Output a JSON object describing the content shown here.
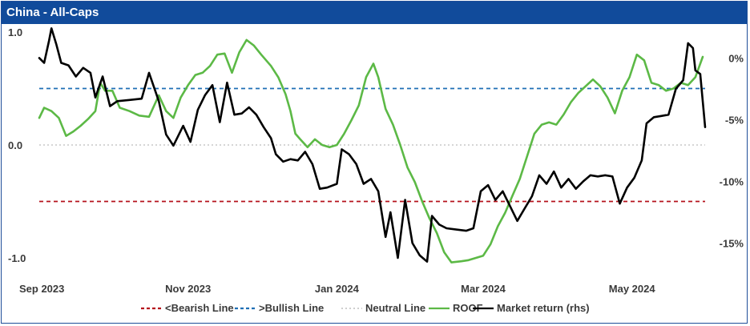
{
  "title": "China - All-Caps",
  "chart_data": {
    "type": "line",
    "title": "China - All-Caps",
    "x_tick_labels": [
      "Sep 2023",
      "Nov 2023",
      "Jan 2024",
      "Mar 2024",
      "May 2024"
    ],
    "x_ticks_dates": [
      "2023-09-01",
      "2023-11-01",
      "2024-01-01",
      "2024-03-01",
      "2024-05-01"
    ],
    "x_range": [
      "2023-09-01",
      "2024-05-31"
    ],
    "y_left": {
      "ticks": [
        "1.0",
        "0.0",
        "-1.0"
      ],
      "tick_values": [
        1.0,
        0.0,
        -1.0
      ],
      "range": [
        -1.0,
        1.0
      ]
    },
    "y_right": {
      "ticks": [
        "0%",
        "-5%",
        "-10%",
        "-15%"
      ],
      "tick_values": [
        0,
        -5,
        -10,
        -15
      ],
      "range": [
        -16.2,
        2.1
      ],
      "unit": "%"
    },
    "grid": false,
    "legend_position": "bottom",
    "reference_lines": [
      {
        "name": "<Bearish Line",
        "value": -0.5,
        "color": "#b5121b",
        "style": "dashed"
      },
      {
        "name": ">Bullish Line",
        "value": 0.5,
        "color": "#1f6fb5",
        "style": "dashed"
      },
      {
        "name": "Neutral Line",
        "value": 0.0,
        "color": "#bdbdbd",
        "style": "dotted"
      }
    ],
    "series": [
      {
        "name": "ROOF",
        "axis": "left",
        "color": "#5cb946",
        "points": [
          [
            "2023-09-01",
            0.24
          ],
          [
            "2023-09-03",
            0.33
          ],
          [
            "2023-09-06",
            0.3
          ],
          [
            "2023-09-09",
            0.24
          ],
          [
            "2023-09-12",
            0.08
          ],
          [
            "2023-09-15",
            0.12
          ],
          [
            "2023-09-18",
            0.17
          ],
          [
            "2023-09-21",
            0.23
          ],
          [
            "2023-09-24",
            0.3
          ],
          [
            "2023-09-26",
            0.55
          ],
          [
            "2023-09-28",
            0.48
          ],
          [
            "2023-10-01",
            0.48
          ],
          [
            "2023-10-04",
            0.33
          ],
          [
            "2023-10-08",
            0.3
          ],
          [
            "2023-10-12",
            0.26
          ],
          [
            "2023-10-16",
            0.25
          ],
          [
            "2023-10-20",
            0.44
          ],
          [
            "2023-10-23",
            0.3
          ],
          [
            "2023-10-26",
            0.24
          ],
          [
            "2023-10-29",
            0.42
          ],
          [
            "2023-11-01",
            0.53
          ],
          [
            "2023-11-04",
            0.62
          ],
          [
            "2023-11-07",
            0.64
          ],
          [
            "2023-11-10",
            0.7
          ],
          [
            "2023-11-13",
            0.8
          ],
          [
            "2023-11-16",
            0.81
          ],
          [
            "2023-11-19",
            0.64
          ],
          [
            "2023-11-22",
            0.82
          ],
          [
            "2023-11-25",
            0.93
          ],
          [
            "2023-11-28",
            0.88
          ],
          [
            "2023-12-01",
            0.8
          ],
          [
            "2023-12-05",
            0.7
          ],
          [
            "2023-12-08",
            0.6
          ],
          [
            "2023-12-11",
            0.45
          ],
          [
            "2023-12-13",
            0.3
          ],
          [
            "2023-12-15",
            0.1
          ],
          [
            "2023-12-17",
            0.05
          ],
          [
            "2023-12-20",
            -0.02
          ],
          [
            "2023-12-23",
            0.05
          ],
          [
            "2023-12-26",
            0.0
          ],
          [
            "2023-12-29",
            -0.02
          ],
          [
            "2024-01-01",
            0.0
          ],
          [
            "2024-01-04",
            0.1
          ],
          [
            "2024-01-07",
            0.22
          ],
          [
            "2024-01-10",
            0.35
          ],
          [
            "2024-01-13",
            0.6
          ],
          [
            "2024-01-16",
            0.72
          ],
          [
            "2024-01-18",
            0.6
          ],
          [
            "2024-01-21",
            0.32
          ],
          [
            "2024-01-24",
            0.18
          ],
          [
            "2024-01-27",
            0.0
          ],
          [
            "2024-01-30",
            -0.2
          ],
          [
            "2024-02-02",
            -0.33
          ],
          [
            "2024-02-05",
            -0.5
          ],
          [
            "2024-02-08",
            -0.65
          ],
          [
            "2024-02-11",
            -0.78
          ],
          [
            "2024-02-14",
            -0.95
          ],
          [
            "2024-02-17",
            -1.04
          ],
          [
            "2024-02-21",
            -1.03
          ],
          [
            "2024-02-24",
            -1.02
          ],
          [
            "2024-02-27",
            -1.0
          ],
          [
            "2024-03-01",
            -0.98
          ],
          [
            "2024-03-04",
            -0.88
          ],
          [
            "2024-03-07",
            -0.72
          ],
          [
            "2024-03-10",
            -0.6
          ],
          [
            "2024-03-13",
            -0.45
          ],
          [
            "2024-03-16",
            -0.3
          ],
          [
            "2024-03-19",
            -0.1
          ],
          [
            "2024-03-22",
            0.1
          ],
          [
            "2024-03-25",
            0.18
          ],
          [
            "2024-03-28",
            0.2
          ],
          [
            "2024-03-31",
            0.18
          ],
          [
            "2024-04-03",
            0.27
          ],
          [
            "2024-04-06",
            0.38
          ],
          [
            "2024-04-09",
            0.46
          ],
          [
            "2024-04-12",
            0.52
          ],
          [
            "2024-04-15",
            0.58
          ],
          [
            "2024-04-18",
            0.52
          ],
          [
            "2024-04-21",
            0.42
          ],
          [
            "2024-04-24",
            0.28
          ],
          [
            "2024-04-27",
            0.48
          ],
          [
            "2024-04-30",
            0.6
          ],
          [
            "2024-05-03",
            0.8
          ],
          [
            "2024-05-06",
            0.75
          ],
          [
            "2024-05-09",
            0.55
          ],
          [
            "2024-05-12",
            0.53
          ],
          [
            "2024-05-15",
            0.48
          ],
          [
            "2024-05-18",
            0.5
          ],
          [
            "2024-05-21",
            0.55
          ],
          [
            "2024-05-24",
            0.53
          ],
          [
            "2024-05-27",
            0.6
          ],
          [
            "2024-05-30",
            0.78
          ]
        ]
      },
      {
        "name": "Market return (rhs)",
        "axis": "right",
        "color": "#000000",
        "points": [
          [
            "2023-09-01",
            0.0
          ],
          [
            "2023-09-03",
            -0.4
          ],
          [
            "2023-09-05",
            1.4
          ],
          [
            "2023-09-06",
            2.4
          ],
          [
            "2023-09-08",
            1.1
          ],
          [
            "2023-09-10",
            -0.4
          ],
          [
            "2023-09-13",
            -0.6
          ],
          [
            "2023-09-16",
            -1.5
          ],
          [
            "2023-09-19",
            -0.8
          ],
          [
            "2023-09-22",
            -1.2
          ],
          [
            "2023-09-24",
            -3.2
          ],
          [
            "2023-09-27",
            -1.5
          ],
          [
            "2023-09-30",
            -3.9
          ],
          [
            "2023-10-03",
            -3.5
          ],
          [
            "2023-10-08",
            -3.4
          ],
          [
            "2023-10-13",
            -3.3
          ],
          [
            "2023-10-16",
            -1.2
          ],
          [
            "2023-10-20",
            -3.5
          ],
          [
            "2023-10-23",
            -6.2
          ],
          [
            "2023-10-26",
            -7.1
          ],
          [
            "2023-10-30",
            -5.5
          ],
          [
            "2023-11-02",
            -6.8
          ],
          [
            "2023-11-05",
            -4.2
          ],
          [
            "2023-11-08",
            -3.0
          ],
          [
            "2023-11-11",
            -2.2
          ],
          [
            "2023-11-14",
            -5.2
          ],
          [
            "2023-11-17",
            -2.0
          ],
          [
            "2023-11-20",
            -4.6
          ],
          [
            "2023-11-23",
            -4.5
          ],
          [
            "2023-11-26",
            -4.0
          ],
          [
            "2023-11-29",
            -4.6
          ],
          [
            "2023-12-02",
            -5.6
          ],
          [
            "2023-12-05",
            -6.5
          ],
          [
            "2023-12-07",
            -7.8
          ],
          [
            "2023-12-10",
            -8.4
          ],
          [
            "2023-12-13",
            -8.2
          ],
          [
            "2023-12-16",
            -8.3
          ],
          [
            "2023-12-19",
            -7.6
          ],
          [
            "2023-12-22",
            -8.6
          ],
          [
            "2023-12-25",
            -10.6
          ],
          [
            "2023-12-28",
            -10.5
          ],
          [
            "2024-01-01",
            -10.2
          ],
          [
            "2024-01-03",
            -7.4
          ],
          [
            "2024-01-06",
            -7.8
          ],
          [
            "2024-01-09",
            -8.6
          ],
          [
            "2024-01-12",
            -10.2
          ],
          [
            "2024-01-15",
            -9.8
          ],
          [
            "2024-01-18",
            -10.8
          ],
          [
            "2024-01-21",
            -14.5
          ],
          [
            "2024-01-23",
            -12.5
          ],
          [
            "2024-01-26",
            -16.2
          ],
          [
            "2024-01-29",
            -11.5
          ],
          [
            "2024-02-01",
            -15.0
          ],
          [
            "2024-02-04",
            -16.0
          ],
          [
            "2024-02-07",
            -16.5
          ],
          [
            "2024-02-09",
            -12.8
          ],
          [
            "2024-02-12",
            -13.5
          ],
          [
            "2024-02-15",
            -13.8
          ],
          [
            "2024-02-19",
            -13.9
          ],
          [
            "2024-02-23",
            -14.0
          ],
          [
            "2024-02-26",
            -13.8
          ],
          [
            "2024-02-29",
            -10.8
          ],
          [
            "2024-03-03",
            -10.3
          ],
          [
            "2024-03-06",
            -11.5
          ],
          [
            "2024-03-09",
            -10.8
          ],
          [
            "2024-03-12",
            -12.0
          ],
          [
            "2024-03-15",
            -13.2
          ],
          [
            "2024-03-18",
            -12.2
          ],
          [
            "2024-03-21",
            -11.2
          ],
          [
            "2024-03-24",
            -9.5
          ],
          [
            "2024-03-27",
            -10.2
          ],
          [
            "2024-03-30",
            -9.2
          ],
          [
            "2024-04-02",
            -10.5
          ],
          [
            "2024-04-05",
            -9.8
          ],
          [
            "2024-04-08",
            -10.6
          ],
          [
            "2024-04-11",
            -10.0
          ],
          [
            "2024-04-14",
            -9.5
          ],
          [
            "2024-04-17",
            -9.6
          ],
          [
            "2024-04-20",
            -9.5
          ],
          [
            "2024-04-23",
            -9.6
          ],
          [
            "2024-04-26",
            -11.8
          ],
          [
            "2024-04-29",
            -10.5
          ],
          [
            "2024-05-02",
            -9.7
          ],
          [
            "2024-05-05",
            -8.3
          ],
          [
            "2024-05-07",
            -5.3
          ],
          [
            "2024-05-10",
            -4.8
          ],
          [
            "2024-05-13",
            -4.7
          ],
          [
            "2024-05-16",
            -4.6
          ],
          [
            "2024-05-19",
            -2.5
          ],
          [
            "2024-05-22",
            -1.8
          ],
          [
            "2024-05-24",
            1.2
          ],
          [
            "2024-05-26",
            0.8
          ],
          [
            "2024-05-27",
            -1.0
          ],
          [
            "2024-05-29",
            -1.3
          ],
          [
            "2024-05-31",
            -5.6
          ]
        ]
      }
    ],
    "legend": [
      {
        "name": "<Bearish Line",
        "color": "#b5121b",
        "style": "dashed"
      },
      {
        "name": ">Bullish Line",
        "color": "#1f6fb5",
        "style": "dashed"
      },
      {
        "name": "Neutral Line",
        "color": "#bdbdbd",
        "style": "dotted"
      },
      {
        "name": "ROOF",
        "color": "#5cb946",
        "style": "solid"
      },
      {
        "name": "Market return (rhs)",
        "color": "#000000",
        "style": "solid"
      }
    ]
  },
  "colors": {
    "header_bg": "#114b9b",
    "header_text": "#ffffff",
    "frame_border": "#1f4e99"
  }
}
